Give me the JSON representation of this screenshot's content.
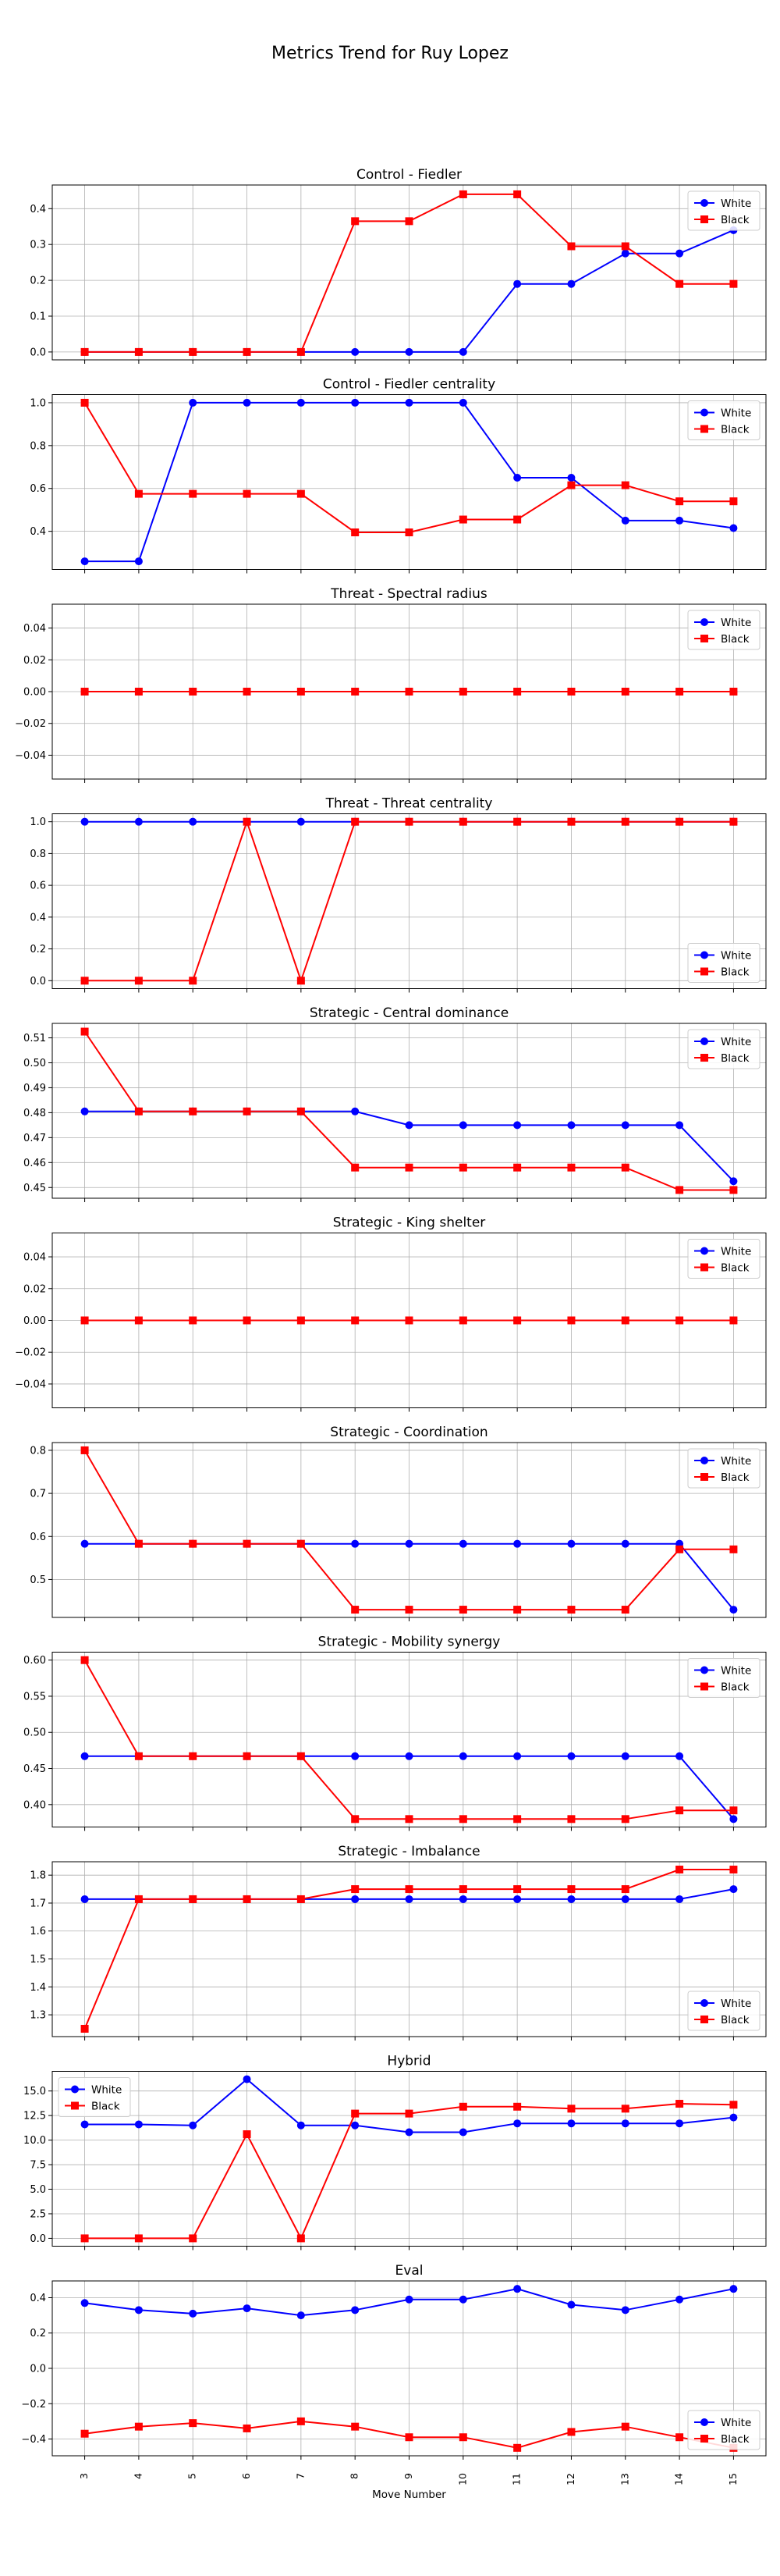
{
  "title": "Metrics Trend for Ruy Lopez",
  "chart_data": [
    {
      "type": "line",
      "title": "Control - Fiedler",
      "xlabel": "",
      "ylabel": "",
      "x": [
        3,
        4,
        5,
        6,
        7,
        8,
        9,
        10,
        11,
        12,
        13,
        14,
        15
      ],
      "ylim": [
        -0.022,
        0.466
      ],
      "yticks": [
        0.0,
        0.1,
        0.2,
        0.3,
        0.4
      ],
      "ytick_labels": [
        "0.0",
        "0.1",
        "0.2",
        "0.3",
        "0.4"
      ],
      "grid": true,
      "legend": "upper right",
      "series": [
        {
          "name": "White",
          "color": "#0000ff",
          "marker": "circle",
          "values": [
            0,
            0,
            0,
            0,
            0,
            0,
            0,
            0,
            0.19,
            0.19,
            0.275,
            0.275,
            0.34
          ]
        },
        {
          "name": "Black",
          "color": "#ff0000",
          "marker": "square",
          "values": [
            0,
            0,
            0,
            0,
            0,
            0.365,
            0.365,
            0.44,
            0.44,
            0.295,
            0.295,
            0.19,
            0.19
          ]
        }
      ]
    },
    {
      "type": "line",
      "title": "Control - Fiedler centrality",
      "xlabel": "",
      "ylabel": "",
      "x": [
        3,
        4,
        5,
        6,
        7,
        8,
        9,
        10,
        11,
        12,
        13,
        14,
        15
      ],
      "ylim": [
        0.222,
        1.038
      ],
      "yticks": [
        0.4,
        0.6,
        0.8,
        1.0
      ],
      "ytick_labels": [
        "0.4",
        "0.6",
        "0.8",
        "1.0"
      ],
      "grid": true,
      "legend": "upper right",
      "series": [
        {
          "name": "White",
          "color": "#0000ff",
          "marker": "circle",
          "values": [
            0.26,
            0.26,
            1.0,
            1.0,
            1.0,
            1.0,
            1.0,
            1.0,
            0.65,
            0.65,
            0.45,
            0.45,
            0.415
          ]
        },
        {
          "name": "Black",
          "color": "#ff0000",
          "marker": "square",
          "values": [
            1.0,
            0.575,
            0.575,
            0.575,
            0.575,
            0.395,
            0.395,
            0.455,
            0.455,
            0.615,
            0.615,
            0.54,
            0.54
          ]
        }
      ]
    },
    {
      "type": "line",
      "title": "Threat - Spectral radius",
      "xlabel": "",
      "ylabel": "",
      "x": [
        3,
        4,
        5,
        6,
        7,
        8,
        9,
        10,
        11,
        12,
        13,
        14,
        15
      ],
      "ylim": [
        -0.055,
        0.055
      ],
      "yticks": [
        -0.04,
        -0.02,
        0.0,
        0.02,
        0.04
      ],
      "ytick_labels": [
        "−0.04",
        "−0.02",
        "0.00",
        "0.02",
        "0.04"
      ],
      "grid": true,
      "legend": "upper right",
      "series": [
        {
          "name": "White",
          "color": "#0000ff",
          "marker": "circle",
          "values": [
            0,
            0,
            0,
            0,
            0,
            0,
            0,
            0,
            0,
            0,
            0,
            0,
            0
          ]
        },
        {
          "name": "Black",
          "color": "#ff0000",
          "marker": "square",
          "values": [
            0,
            0,
            0,
            0,
            0,
            0,
            0,
            0,
            0,
            0,
            0,
            0,
            0
          ]
        }
      ]
    },
    {
      "type": "line",
      "title": "Threat - Threat centrality",
      "xlabel": "",
      "ylabel": "",
      "x": [
        3,
        4,
        5,
        6,
        7,
        8,
        9,
        10,
        11,
        12,
        13,
        14,
        15
      ],
      "ylim": [
        -0.05,
        1.05
      ],
      "yticks": [
        0.0,
        0.2,
        0.4,
        0.6,
        0.8,
        1.0
      ],
      "ytick_labels": [
        "0.0",
        "0.2",
        "0.4",
        "0.6",
        "0.8",
        "1.0"
      ],
      "grid": true,
      "legend": "lower right",
      "series": [
        {
          "name": "White",
          "color": "#0000ff",
          "marker": "circle",
          "values": [
            1,
            1,
            1,
            1,
            1,
            1,
            1,
            1,
            1,
            1,
            1,
            1,
            1
          ]
        },
        {
          "name": "Black",
          "color": "#ff0000",
          "marker": "square",
          "values": [
            0,
            0,
            0,
            1,
            0,
            1,
            1,
            1,
            1,
            1,
            1,
            1,
            1
          ]
        }
      ]
    },
    {
      "type": "line",
      "title": "Strategic - Central dominance",
      "xlabel": "",
      "ylabel": "",
      "x": [
        3,
        4,
        5,
        6,
        7,
        8,
        9,
        10,
        11,
        12,
        13,
        14,
        15
      ],
      "ylim": [
        0.4457,
        0.5158
      ],
      "yticks": [
        0.45,
        0.46,
        0.47,
        0.48,
        0.49,
        0.5,
        0.51
      ],
      "ytick_labels": [
        "0.45",
        "0.46",
        "0.47",
        "0.48",
        "0.49",
        "0.50",
        "0.51"
      ],
      "grid": true,
      "legend": "upper right",
      "series": [
        {
          "name": "White",
          "color": "#0000ff",
          "marker": "circle",
          "values": [
            0.4805,
            0.4805,
            0.4805,
            0.4805,
            0.4805,
            0.4805,
            0.475,
            0.475,
            0.475,
            0.475,
            0.475,
            0.475,
            0.4525
          ]
        },
        {
          "name": "Black",
          "color": "#ff0000",
          "marker": "square",
          "values": [
            0.5125,
            0.4805,
            0.4805,
            0.4805,
            0.4805,
            0.458,
            0.458,
            0.458,
            0.458,
            0.458,
            0.458,
            0.449,
            0.449
          ]
        }
      ]
    },
    {
      "type": "line",
      "title": "Strategic - King shelter",
      "xlabel": "",
      "ylabel": "",
      "x": [
        3,
        4,
        5,
        6,
        7,
        8,
        9,
        10,
        11,
        12,
        13,
        14,
        15
      ],
      "ylim": [
        -0.055,
        0.055
      ],
      "yticks": [
        -0.04,
        -0.02,
        0.0,
        0.02,
        0.04
      ],
      "ytick_labels": [
        "−0.04",
        "−0.02",
        "0.00",
        "0.02",
        "0.04"
      ],
      "grid": true,
      "legend": "upper right",
      "series": [
        {
          "name": "White",
          "color": "#0000ff",
          "marker": "circle",
          "values": [
            0,
            0,
            0,
            0,
            0,
            0,
            0,
            0,
            0,
            0,
            0,
            0,
            0
          ]
        },
        {
          "name": "Black",
          "color": "#ff0000",
          "marker": "square",
          "values": [
            0,
            0,
            0,
            0,
            0,
            0,
            0,
            0,
            0,
            0,
            0,
            0,
            0
          ]
        }
      ]
    },
    {
      "type": "line",
      "title": "Strategic - Coordination",
      "xlabel": "",
      "ylabel": "",
      "x": [
        3,
        4,
        5,
        6,
        7,
        8,
        9,
        10,
        11,
        12,
        13,
        14,
        15
      ],
      "ylim": [
        0.412,
        0.818
      ],
      "yticks": [
        0.5,
        0.6,
        0.7,
        0.8
      ],
      "ytick_labels": [
        "0.5",
        "0.6",
        "0.7",
        "0.8"
      ],
      "grid": true,
      "legend": "upper right",
      "series": [
        {
          "name": "White",
          "color": "#0000ff",
          "marker": "circle",
          "values": [
            0.583,
            0.583,
            0.583,
            0.583,
            0.583,
            0.583,
            0.583,
            0.583,
            0.583,
            0.583,
            0.583,
            0.583,
            0.43
          ]
        },
        {
          "name": "Black",
          "color": "#ff0000",
          "marker": "square",
          "values": [
            0.8,
            0.583,
            0.583,
            0.583,
            0.583,
            0.43,
            0.43,
            0.43,
            0.43,
            0.43,
            0.43,
            0.57,
            0.57
          ]
        }
      ]
    },
    {
      "type": "line",
      "title": "Strategic - Mobility synergy",
      "xlabel": "",
      "ylabel": "",
      "x": [
        3,
        4,
        5,
        6,
        7,
        8,
        9,
        10,
        11,
        12,
        13,
        14,
        15
      ],
      "ylim": [
        0.369,
        0.611
      ],
      "yticks": [
        0.4,
        0.45,
        0.5,
        0.55,
        0.6
      ],
      "ytick_labels": [
        "0.40",
        "0.45",
        "0.50",
        "0.55",
        "0.60"
      ],
      "grid": true,
      "legend": "upper right",
      "series": [
        {
          "name": "White",
          "color": "#0000ff",
          "marker": "circle",
          "values": [
            0.467,
            0.467,
            0.467,
            0.467,
            0.467,
            0.467,
            0.467,
            0.467,
            0.467,
            0.467,
            0.467,
            0.467,
            0.38
          ]
        },
        {
          "name": "Black",
          "color": "#ff0000",
          "marker": "square",
          "values": [
            0.6,
            0.467,
            0.467,
            0.467,
            0.467,
            0.38,
            0.38,
            0.38,
            0.38,
            0.38,
            0.38,
            0.392,
            0.392
          ]
        }
      ]
    },
    {
      "type": "line",
      "title": "Strategic - Imbalance",
      "xlabel": "",
      "ylabel": "",
      "x": [
        3,
        4,
        5,
        6,
        7,
        8,
        9,
        10,
        11,
        12,
        13,
        14,
        15
      ],
      "ylim": [
        1.222,
        1.848
      ],
      "yticks": [
        1.3,
        1.4,
        1.5,
        1.6,
        1.7,
        1.8
      ],
      "ytick_labels": [
        "1.3",
        "1.4",
        "1.5",
        "1.6",
        "1.7",
        "1.8"
      ],
      "grid": true,
      "legend": "lower right",
      "series": [
        {
          "name": "White",
          "color": "#0000ff",
          "marker": "circle",
          "values": [
            1.714,
            1.714,
            1.714,
            1.714,
            1.714,
            1.714,
            1.714,
            1.714,
            1.714,
            1.714,
            1.714,
            1.714,
            1.75
          ]
        },
        {
          "name": "Black",
          "color": "#ff0000",
          "marker": "square",
          "values": [
            1.25,
            1.714,
            1.714,
            1.714,
            1.714,
            1.75,
            1.75,
            1.75,
            1.75,
            1.75,
            1.75,
            1.82,
            1.82
          ]
        }
      ]
    },
    {
      "type": "line",
      "title": "Hybrid",
      "xlabel": "",
      "ylabel": "",
      "x": [
        3,
        4,
        5,
        6,
        7,
        8,
        9,
        10,
        11,
        12,
        13,
        14,
        15
      ],
      "ylim": [
        -0.8,
        17.0
      ],
      "yticks": [
        0.0,
        2.5,
        5.0,
        7.5,
        10.0,
        12.5,
        15.0
      ],
      "ytick_labels": [
        "0.0",
        "2.5",
        "5.0",
        "7.5",
        "10.0",
        "12.5",
        "15.0"
      ],
      "grid": true,
      "legend": "upper left",
      "series": [
        {
          "name": "White",
          "color": "#0000ff",
          "marker": "circle",
          "values": [
            11.6,
            11.6,
            11.5,
            16.2,
            11.5,
            11.5,
            10.8,
            10.8,
            11.7,
            11.7,
            11.7,
            11.7,
            12.3
          ]
        },
        {
          "name": "Black",
          "color": "#ff0000",
          "marker": "square",
          "values": [
            0,
            0,
            0,
            10.6,
            0,
            12.7,
            12.7,
            13.4,
            13.4,
            13.2,
            13.2,
            13.7,
            13.6
          ]
        }
      ]
    },
    {
      "type": "line",
      "title": "Eval",
      "xlabel": "Move Number",
      "ylabel": "",
      "x": [
        3,
        4,
        5,
        6,
        7,
        8,
        9,
        10,
        11,
        12,
        13,
        14,
        15
      ],
      "ylim": [
        -0.495,
        0.495
      ],
      "yticks": [
        -0.4,
        -0.2,
        0.0,
        0.2,
        0.4
      ],
      "ytick_labels": [
        "−0.4",
        "−0.2",
        "0.0",
        "0.2",
        "0.4"
      ],
      "grid": true,
      "legend": "lower right",
      "xtick_labels": [
        "3",
        "4",
        "5",
        "6",
        "7",
        "8",
        "9",
        "10",
        "11",
        "12",
        "13",
        "14",
        "15"
      ],
      "series": [
        {
          "name": "White",
          "color": "#0000ff",
          "marker": "circle",
          "values": [
            0.37,
            0.33,
            0.31,
            0.34,
            0.3,
            0.33,
            0.39,
            0.39,
            0.45,
            0.36,
            0.33,
            0.39,
            0.45
          ]
        },
        {
          "name": "Black",
          "color": "#ff0000",
          "marker": "square",
          "values": [
            -0.37,
            -0.33,
            -0.31,
            -0.34,
            -0.3,
            -0.33,
            -0.39,
            -0.39,
            -0.45,
            -0.36,
            -0.33,
            -0.39,
            -0.45
          ]
        }
      ]
    }
  ]
}
